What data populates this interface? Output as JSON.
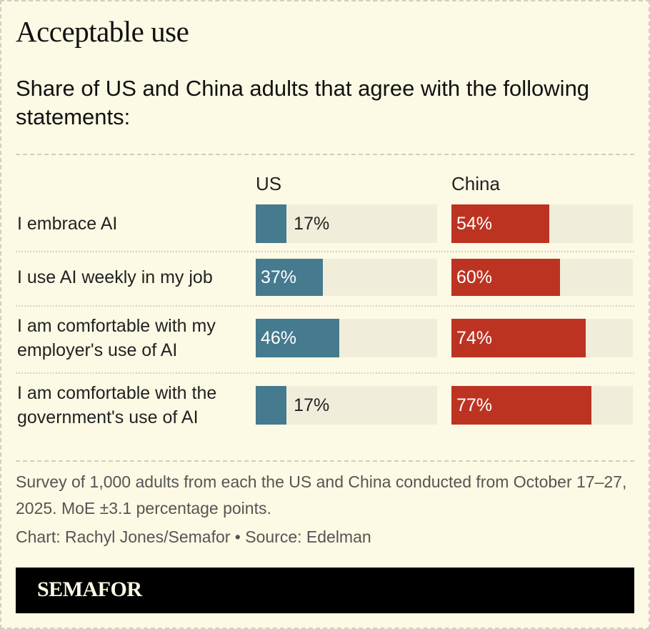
{
  "header": {
    "title": "Acceptable use",
    "subtitle": "Share of US and China adults that agree with the following statements:"
  },
  "chart_data": {
    "type": "bar",
    "orientation": "horizontal",
    "categories": [
      "I embrace AI",
      "I use AI weekly in my job",
      "I am comfortable with my employer's use of AI",
      "I am comfortable with the government's use of AI"
    ],
    "series": [
      {
        "name": "US",
        "values": [
          17,
          37,
          46,
          17
        ],
        "color": "#457a8f"
      },
      {
        "name": "China",
        "values": [
          54,
          60,
          74,
          77
        ],
        "color": "#bd3322"
      }
    ],
    "xlim": [
      0,
      100
    ],
    "unit": "%",
    "track_color": "#f0eedb"
  },
  "footer": {
    "note": "Survey of 1,000 adults from each the US and China conducted from October 17–27, 2025. MoE ±3.1 percentage points.",
    "credit": "Chart: Rachyl Jones/Semafor • Source: Edelman",
    "logo": "SEMAFOR"
  },
  "colors": {
    "background": "#fcf9e4",
    "footer_bg": "#000000"
  }
}
